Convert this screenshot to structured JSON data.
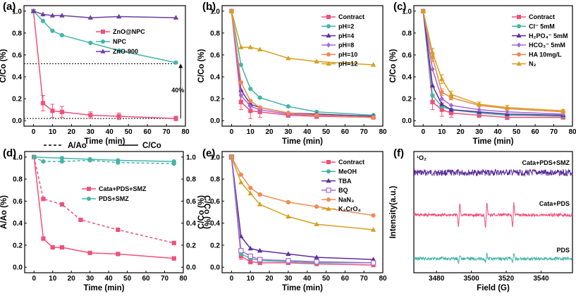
{
  "chart_data": [
    {
      "panel": "(a)",
      "type": "line",
      "xlabel": "Time (min)",
      "ylabel": "C/Co (%)",
      "xlim": [
        -5,
        80
      ],
      "ylim": [
        -0.05,
        1.05
      ],
      "xticks": [
        0,
        10,
        20,
        30,
        40,
        50,
        60,
        70,
        80
      ],
      "yticks": [
        0.0,
        0.2,
        0.4,
        0.6,
        0.8,
        1.0
      ],
      "legend": "right",
      "annotation": "40%",
      "hline": 0.52,
      "series": [
        {
          "name": "ZnO@NPC",
          "color": "#f0507a",
          "marker": "square",
          "x": [
            0,
            5,
            10,
            15,
            30,
            45,
            75
          ],
          "y": [
            1.0,
            0.16,
            0.09,
            0.08,
            0.05,
            0.04,
            0.02
          ],
          "err": [
            0,
            0.07,
            0.06,
            0.05,
            0.03,
            0.03,
            0.02
          ]
        },
        {
          "name": "NPC",
          "color": "#42b5a8",
          "marker": "circle",
          "x": [
            0,
            5,
            10,
            15,
            30,
            45,
            75
          ],
          "y": [
            1.0,
            0.91,
            0.82,
            0.78,
            0.71,
            0.64,
            0.53
          ],
          "err": [
            0,
            0,
            0,
            0,
            0,
            0,
            0
          ]
        },
        {
          "name": "ZnO-900",
          "color": "#6a3fa0",
          "marker": "triangle",
          "x": [
            0,
            5,
            10,
            15,
            30,
            45,
            75
          ],
          "y": [
            1.0,
            0.97,
            0.96,
            0.96,
            0.94,
            0.95,
            0.94
          ],
          "err": [
            0,
            0,
            0,
            0,
            0,
            0,
            0
          ]
        }
      ]
    },
    {
      "panel": "(b)",
      "type": "line",
      "xlabel": "Time (min)",
      "ylabel": "C/Co (%)",
      "xlim": [
        -5,
        80
      ],
      "ylim": [
        -0.05,
        1.05
      ],
      "xticks": [
        0,
        10,
        20,
        30,
        40,
        50,
        60,
        70,
        80
      ],
      "yticks": [
        0.0,
        0.2,
        0.4,
        0.6,
        0.8,
        1.0
      ],
      "legend": "top-right",
      "series": [
        {
          "name": "Contract",
          "color": "#f0507a",
          "marker": "square",
          "x": [
            0,
            5,
            10,
            15,
            30,
            45,
            75
          ],
          "y": [
            1.0,
            0.17,
            0.09,
            0.08,
            0.05,
            0.04,
            0.03
          ],
          "err": [
            0,
            0.07,
            0.07,
            0.05,
            0.02,
            0.02,
            0.01
          ]
        },
        {
          "name": "pH=2",
          "color": "#42b5a8",
          "marker": "circle",
          "x": [
            0,
            5,
            10,
            15,
            30,
            45,
            75
          ],
          "y": [
            1.0,
            0.51,
            0.29,
            0.21,
            0.13,
            0.08,
            0.05
          ],
          "err": [
            0,
            0,
            0,
            0,
            0,
            0,
            0
          ]
        },
        {
          "name": "pH=4",
          "color": "#5b2f9a",
          "marker": "triangle",
          "x": [
            0,
            5,
            10,
            15,
            30,
            45,
            75
          ],
          "y": [
            1.0,
            0.28,
            0.15,
            0.12,
            0.07,
            0.06,
            0.04
          ],
          "err": [
            0,
            0,
            0,
            0,
            0,
            0,
            0
          ]
        },
        {
          "name": "pH=8",
          "color": "#a467d4",
          "marker": "diamond",
          "x": [
            0,
            5,
            10,
            15,
            30,
            45,
            75
          ],
          "y": [
            1.0,
            0.23,
            0.13,
            0.1,
            0.06,
            0.05,
            0.03
          ],
          "err": [
            0,
            0,
            0,
            0,
            0,
            0,
            0
          ]
        },
        {
          "name": "pH=10",
          "color": "#f08a50",
          "marker": "circle",
          "x": [
            0,
            5,
            10,
            15,
            30,
            45,
            75
          ],
          "y": [
            1.0,
            0.35,
            0.18,
            0.12,
            0.07,
            0.05,
            0.03
          ],
          "err": [
            0,
            0,
            0,
            0,
            0,
            0,
            0
          ]
        },
        {
          "name": "pH=12",
          "color": "#d6a020",
          "marker": "triangle",
          "x": [
            0,
            5,
            10,
            15,
            30,
            45,
            75
          ],
          "y": [
            1.0,
            0.67,
            0.67,
            0.65,
            0.57,
            0.54,
            0.51
          ],
          "err": [
            0,
            0,
            0,
            0,
            0,
            0,
            0
          ]
        }
      ]
    },
    {
      "panel": "(c)",
      "type": "line",
      "xlabel": "Time (min)",
      "ylabel": "C/Co (%)",
      "xlim": [
        -5,
        80
      ],
      "ylim": [
        -0.05,
        1.05
      ],
      "xticks": [
        0,
        10,
        20,
        30,
        40,
        50,
        60,
        70,
        80
      ],
      "yticks": [
        0.0,
        0.2,
        0.4,
        0.6,
        0.8,
        1.0
      ],
      "legend": "top-right",
      "series": [
        {
          "name": "Contract",
          "color": "#f0507a",
          "marker": "square",
          "x": [
            0,
            5,
            10,
            15,
            30,
            45,
            75
          ],
          "y": [
            1.0,
            0.17,
            0.1,
            0.07,
            0.05,
            0.03,
            0.03
          ],
          "err": [
            0,
            0.07,
            0.06,
            0.04,
            0.02,
            0.02,
            0.01
          ]
        },
        {
          "name": "Cl⁻ 5mM",
          "color": "#42b5a8",
          "marker": "circle",
          "x": [
            0,
            5,
            10,
            15,
            30,
            45,
            75
          ],
          "y": [
            1.0,
            0.23,
            0.13,
            0.1,
            0.07,
            0.05,
            0.04
          ],
          "err": [
            0,
            0,
            0,
            0,
            0,
            0,
            0
          ]
        },
        {
          "name": "H₂PO₄⁻ 5mM",
          "color": "#5b2f9a",
          "marker": "triangle",
          "x": [
            0,
            5,
            10,
            15,
            30,
            45,
            75
          ],
          "y": [
            1.0,
            0.32,
            0.15,
            0.1,
            0.08,
            0.06,
            0.05
          ],
          "err": [
            0,
            0,
            0,
            0,
            0,
            0,
            0
          ]
        },
        {
          "name": "HCO₃⁻ 5mM",
          "color": "#a467d4",
          "marker": "diamond",
          "x": [
            0,
            5,
            10,
            15,
            30,
            45,
            75
          ],
          "y": [
            1.0,
            0.47,
            0.2,
            0.14,
            0.1,
            0.08,
            0.06
          ],
          "err": [
            0,
            0,
            0,
            0,
            0,
            0,
            0
          ]
        },
        {
          "name": "HA 10mg/L",
          "color": "#f08a50",
          "marker": "circle",
          "x": [
            0,
            5,
            10,
            15,
            30,
            45,
            75
          ],
          "y": [
            1.0,
            0.58,
            0.26,
            0.21,
            0.14,
            0.11,
            0.08
          ],
          "err": [
            0,
            0.04,
            0.03,
            0.02,
            0,
            0,
            0
          ]
        },
        {
          "name": "N₂",
          "color": "#d6a020",
          "marker": "triangle",
          "x": [
            0,
            5,
            10,
            15,
            30,
            45,
            75
          ],
          "y": [
            1.0,
            0.62,
            0.38,
            0.24,
            0.15,
            0.12,
            0.09
          ],
          "err": [
            0,
            0.04,
            0.04,
            0.03,
            0.02,
            0.02,
            0.01
          ]
        }
      ]
    },
    {
      "panel": "(d)",
      "type": "line",
      "xlabel": "Time (min)",
      "ylabel": "A/Ao (%)",
      "ylabel_right": "C/Co (%)",
      "xlim": [
        -5,
        80
      ],
      "ylim": [
        -0.05,
        1.05
      ],
      "ylim_right": [
        -0.05,
        1.05
      ],
      "xticks": [
        0,
        10,
        20,
        30,
        40,
        50,
        60,
        70,
        80
      ],
      "yticks": [
        0.0,
        0.2,
        0.4,
        0.6,
        0.8,
        1.0
      ],
      "legend": "right",
      "style_legend": [
        {
          "name": "A/Ao",
          "dash": true
        },
        {
          "name": "C/Co",
          "dash": false
        }
      ],
      "series": [
        {
          "name": "Cata+PDS+SMZ",
          "color": "#f0507a",
          "marker": "square",
          "dash": false,
          "x": [
            0,
            5,
            10,
            15,
            30,
            45,
            75
          ],
          "y": [
            1.0,
            0.26,
            0.18,
            0.18,
            0.13,
            0.12,
            0.08
          ],
          "err": [
            0,
            0,
            0,
            0,
            0,
            0,
            0
          ]
        },
        {
          "name": "Cata+PDS+SMZ A/Ao",
          "color": "#f0507a",
          "marker": "square",
          "dash": true,
          "legend": false,
          "x": [
            0,
            5,
            15,
            25,
            45,
            75
          ],
          "y": [
            1.0,
            0.62,
            0.57,
            0.43,
            0.34,
            0.22
          ],
          "err": [
            0,
            0,
            0,
            0,
            0,
            0
          ]
        },
        {
          "name": "PDS+SMZ",
          "color": "#42b5a8",
          "marker": "circle",
          "dash": false,
          "x": [
            0,
            15,
            30,
            45,
            75
          ],
          "y": [
            1.0,
            0.99,
            0.98,
            0.97,
            0.96
          ],
          "err": [
            0,
            0,
            0,
            0,
            0
          ]
        },
        {
          "name": "PDS+SMZ A/Ao",
          "color": "#42b5a8",
          "marker": "circle",
          "dash": true,
          "legend": false,
          "x": [
            0,
            5,
            15,
            30,
            45,
            75
          ],
          "y": [
            1.0,
            0.96,
            0.96,
            0.97,
            0.95,
            0.94
          ],
          "err": [
            0,
            0,
            0,
            0,
            0,
            0
          ]
        }
      ]
    },
    {
      "panel": "(e)",
      "type": "line",
      "xlabel": "Time (min)",
      "ylabel": "C/Co (%)",
      "xlim": [
        -5,
        80
      ],
      "ylim": [
        -0.05,
        1.05
      ],
      "xticks": [
        0,
        10,
        20,
        30,
        40,
        50,
        60,
        70,
        80
      ],
      "yticks": [
        0.0,
        0.2,
        0.4,
        0.6,
        0.8,
        1.0
      ],
      "legend": "top-right",
      "series": [
        {
          "name": "Contract",
          "color": "#f0507a",
          "marker": "square",
          "x": [
            0,
            5,
            10,
            15,
            30,
            45,
            75
          ],
          "y": [
            1.0,
            0.1,
            0.05,
            0.04,
            0.04,
            0.03,
            0.02
          ],
          "err": [
            0,
            0.03,
            0.02,
            0.01,
            0.01,
            0.01,
            0.01
          ]
        },
        {
          "name": "MeOH",
          "color": "#42b5a8",
          "marker": "circle",
          "x": [
            0,
            5,
            10,
            15,
            30,
            45,
            75
          ],
          "y": [
            1.0,
            0.12,
            0.08,
            0.06,
            0.05,
            0.04,
            0.04
          ],
          "err": [
            0,
            0,
            0,
            0,
            0,
            0,
            0
          ]
        },
        {
          "name": "TBA",
          "color": "#5b2f9a",
          "marker": "triangle",
          "x": [
            0,
            5,
            10,
            15,
            30,
            45,
            75
          ],
          "y": [
            1.0,
            0.28,
            0.17,
            0.15,
            0.12,
            0.09,
            0.07
          ],
          "err": [
            0,
            0,
            0,
            0,
            0,
            0,
            0
          ]
        },
        {
          "name": "BQ",
          "color": "#a467d4",
          "marker": "square-open",
          "x": [
            0,
            5,
            10,
            15,
            30,
            45,
            75
          ],
          "y": [
            1.0,
            0.15,
            0.1,
            0.07,
            0.06,
            0.05,
            0.04
          ],
          "err": [
            0,
            0,
            0,
            0,
            0,
            0,
            0
          ]
        },
        {
          "name": "NaN₃",
          "color": "#f08a50",
          "marker": "circle",
          "x": [
            0,
            5,
            10,
            15,
            30,
            45,
            75
          ],
          "y": [
            1.0,
            0.84,
            0.72,
            0.66,
            0.59,
            0.55,
            0.47
          ],
          "err": [
            0,
            0,
            0,
            0,
            0,
            0,
            0
          ]
        },
        {
          "name": "K₂CrO₄",
          "color": "#d6a020",
          "marker": "triangle",
          "x": [
            0,
            5,
            10,
            15,
            30,
            45,
            75
          ],
          "y": [
            1.0,
            0.77,
            0.67,
            0.57,
            0.46,
            0.39,
            0.34
          ],
          "err": [
            0,
            0,
            0,
            0,
            0,
            0,
            0
          ]
        }
      ]
    },
    {
      "panel": "(f)",
      "type": "line",
      "xlabel": "Field (G)",
      "ylabel": "Intensity(a.u.)",
      "xlim": [
        3467,
        3558
      ],
      "xticks": [
        3480,
        3500,
        3520,
        3540
      ],
      "corner_label": "¹O₂",
      "series": [
        {
          "name": "Cata+PDS+SMZ",
          "color": "#5b2f9a",
          "pattern": "noise"
        },
        {
          "name": "Cata+PDS",
          "color": "#f0507a",
          "pattern": "triplet"
        },
        {
          "name": "PDS",
          "color": "#42b5a8",
          "pattern": "weak-triplet"
        }
      ]
    }
  ]
}
